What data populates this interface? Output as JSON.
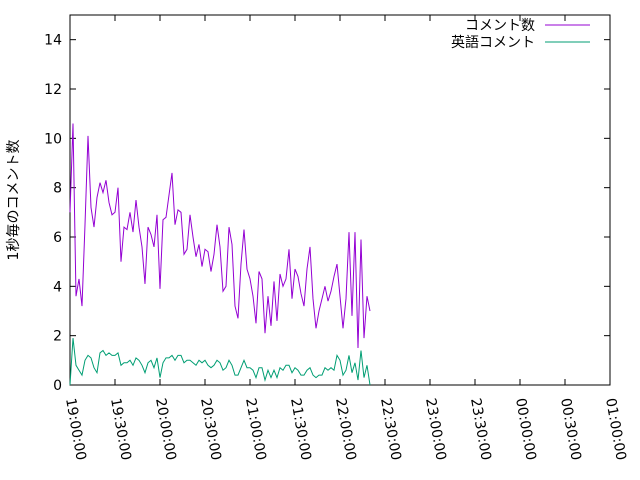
{
  "chart_data": {
    "type": "line",
    "ylabel": "1秒毎のコメント数",
    "xlabel": "",
    "ylim": [
      0,
      15
    ],
    "yticks": [
      "0",
      "2",
      "4",
      "6",
      "8",
      "10",
      "12",
      "14"
    ],
    "xlim": [
      "19:00:00",
      "01:00:00"
    ],
    "xticks": [
      "19:00:00",
      "19:30:00",
      "20:00:00",
      "20:30:00",
      "21:00:00",
      "21:30:00",
      "22:00:00",
      "22:30:00",
      "23:00:00",
      "23:30:00",
      "00:00:00",
      "00:30:00",
      "01:00:00"
    ],
    "grid": false,
    "legend_position": "top-right",
    "series": [
      {
        "name": "コメント数",
        "color": "#9400d3",
        "points": [
          [
            "19:00:00",
            7.0
          ],
          [
            "19:02:00",
            10.6
          ],
          [
            "19:04:00",
            3.6
          ],
          [
            "19:06:00",
            4.3
          ],
          [
            "19:08:00",
            3.2
          ],
          [
            "19:10:00",
            6.5
          ],
          [
            "19:12:00",
            10.1
          ],
          [
            "19:14:00",
            7.2
          ],
          [
            "19:16:00",
            6.4
          ],
          [
            "19:18:00",
            7.6
          ],
          [
            "19:20:00",
            8.2
          ],
          [
            "19:22:00",
            7.8
          ],
          [
            "19:24:00",
            8.3
          ],
          [
            "19:26:00",
            7.4
          ],
          [
            "19:28:00",
            6.9
          ],
          [
            "19:30:00",
            7.0
          ],
          [
            "19:32:00",
            8.0
          ],
          [
            "19:34:00",
            5.0
          ],
          [
            "19:36:00",
            6.4
          ],
          [
            "19:38:00",
            6.3
          ],
          [
            "19:40:00",
            7.0
          ],
          [
            "19:42:00",
            6.2
          ],
          [
            "19:44:00",
            7.5
          ],
          [
            "19:46:00",
            6.4
          ],
          [
            "19:48:00",
            5.6
          ],
          [
            "19:50:00",
            4.1
          ],
          [
            "19:52:00",
            6.4
          ],
          [
            "19:54:00",
            6.1
          ],
          [
            "19:56:00",
            5.6
          ],
          [
            "19:58:00",
            6.9
          ],
          [
            "20:00:00",
            3.9
          ],
          [
            "20:02:00",
            6.7
          ],
          [
            "20:04:00",
            6.8
          ],
          [
            "20:06:00",
            7.7
          ],
          [
            "20:08:00",
            8.6
          ],
          [
            "20:10:00",
            6.5
          ],
          [
            "20:12:00",
            7.1
          ],
          [
            "20:14:00",
            7.0
          ],
          [
            "20:16:00",
            5.3
          ],
          [
            "20:18:00",
            5.5
          ],
          [
            "20:20:00",
            6.9
          ],
          [
            "20:22:00",
            6.0
          ],
          [
            "20:24:00",
            5.2
          ],
          [
            "20:26:00",
            5.7
          ],
          [
            "20:28:00",
            4.8
          ],
          [
            "20:30:00",
            5.5
          ],
          [
            "20:32:00",
            5.4
          ],
          [
            "20:34:00",
            4.6
          ],
          [
            "20:36:00",
            5.3
          ],
          [
            "20:38:00",
            6.5
          ],
          [
            "20:40:00",
            5.6
          ],
          [
            "20:42:00",
            3.8
          ],
          [
            "20:44:00",
            4.0
          ],
          [
            "20:46:00",
            6.4
          ],
          [
            "20:48:00",
            5.7
          ],
          [
            "20:50:00",
            3.2
          ],
          [
            "20:52:00",
            2.7
          ],
          [
            "20:54:00",
            4.9
          ],
          [
            "20:56:00",
            6.3
          ],
          [
            "20:58:00",
            4.7
          ],
          [
            "21:00:00",
            4.3
          ],
          [
            "21:02:00",
            3.6
          ],
          [
            "21:04:00",
            2.5
          ],
          [
            "21:06:00",
            4.6
          ],
          [
            "21:08:00",
            4.3
          ],
          [
            "21:10:00",
            2.1
          ],
          [
            "21:12:00",
            3.6
          ],
          [
            "21:14:00",
            2.4
          ],
          [
            "21:16:00",
            4.2
          ],
          [
            "21:18:00",
            2.6
          ],
          [
            "21:20:00",
            4.5
          ],
          [
            "21:22:00",
            4.0
          ],
          [
            "21:24:00",
            4.3
          ],
          [
            "21:26:00",
            5.5
          ],
          [
            "21:28:00",
            3.5
          ],
          [
            "21:30:00",
            4.7
          ],
          [
            "21:32:00",
            4.4
          ],
          [
            "21:34:00",
            3.7
          ],
          [
            "21:36:00",
            3.2
          ],
          [
            "21:38:00",
            4.7
          ],
          [
            "21:40:00",
            5.6
          ],
          [
            "21:42:00",
            3.5
          ],
          [
            "21:44:00",
            2.3
          ],
          [
            "21:46:00",
            3.0
          ],
          [
            "21:48:00",
            3.5
          ],
          [
            "21:50:00",
            4.0
          ],
          [
            "21:52:00",
            3.4
          ],
          [
            "21:54:00",
            3.8
          ],
          [
            "21:56:00",
            4.4
          ],
          [
            "21:58:00",
            4.9
          ],
          [
            "22:00:00",
            3.6
          ],
          [
            "22:02:00",
            2.3
          ],
          [
            "22:04:00",
            3.5
          ],
          [
            "22:06:00",
            6.2
          ],
          [
            "22:08:00",
            2.8
          ],
          [
            "22:10:00",
            6.2
          ],
          [
            "22:12:00",
            1.5
          ],
          [
            "22:14:00",
            5.9
          ],
          [
            "22:16:00",
            1.9
          ],
          [
            "22:18:00",
            3.6
          ],
          [
            "22:20:00",
            3.0
          ]
        ]
      },
      {
        "name": "英語コメント",
        "color": "#009e73",
        "points": [
          [
            "19:00:00",
            0.0
          ],
          [
            "19:02:00",
            1.9
          ],
          [
            "19:04:00",
            0.8
          ],
          [
            "19:06:00",
            0.6
          ],
          [
            "19:08:00",
            0.4
          ],
          [
            "19:10:00",
            1.0
          ],
          [
            "19:12:00",
            1.2
          ],
          [
            "19:14:00",
            1.1
          ],
          [
            "19:16:00",
            0.7
          ],
          [
            "19:18:00",
            0.5
          ],
          [
            "19:20:00",
            1.3
          ],
          [
            "19:22:00",
            1.4
          ],
          [
            "19:24:00",
            1.2
          ],
          [
            "19:26:00",
            1.3
          ],
          [
            "19:28:00",
            1.2
          ],
          [
            "19:30:00",
            1.2
          ],
          [
            "19:32:00",
            1.3
          ],
          [
            "19:34:00",
            0.8
          ],
          [
            "19:36:00",
            0.9
          ],
          [
            "19:38:00",
            0.9
          ],
          [
            "19:40:00",
            1.0
          ],
          [
            "19:42:00",
            0.8
          ],
          [
            "19:44:00",
            1.1
          ],
          [
            "19:46:00",
            1.0
          ],
          [
            "19:48:00",
            0.8
          ],
          [
            "19:50:00",
            0.5
          ],
          [
            "19:52:00",
            0.9
          ],
          [
            "19:54:00",
            1.0
          ],
          [
            "19:56:00",
            0.7
          ],
          [
            "19:58:00",
            1.1
          ],
          [
            "20:00:00",
            0.3
          ],
          [
            "20:02:00",
            0.9
          ],
          [
            "20:04:00",
            1.1
          ],
          [
            "20:06:00",
            1.1
          ],
          [
            "20:08:00",
            1.2
          ],
          [
            "20:10:00",
            1.0
          ],
          [
            "20:12:00",
            1.2
          ],
          [
            "20:14:00",
            1.2
          ],
          [
            "20:16:00",
            0.9
          ],
          [
            "20:18:00",
            1.0
          ],
          [
            "20:20:00",
            1.0
          ],
          [
            "20:22:00",
            0.9
          ],
          [
            "20:24:00",
            0.8
          ],
          [
            "20:26:00",
            1.0
          ],
          [
            "20:28:00",
            0.9
          ],
          [
            "20:30:00",
            1.0
          ],
          [
            "20:32:00",
            0.8
          ],
          [
            "20:34:00",
            0.7
          ],
          [
            "20:36:00",
            0.8
          ],
          [
            "20:38:00",
            1.0
          ],
          [
            "20:40:00",
            0.9
          ],
          [
            "20:42:00",
            0.6
          ],
          [
            "20:44:00",
            0.7
          ],
          [
            "20:46:00",
            1.0
          ],
          [
            "20:48:00",
            0.8
          ],
          [
            "20:50:00",
            0.4
          ],
          [
            "20:52:00",
            0.4
          ],
          [
            "20:54:00",
            0.7
          ],
          [
            "20:56:00",
            1.0
          ],
          [
            "20:58:00",
            0.7
          ],
          [
            "21:00:00",
            0.7
          ],
          [
            "21:02:00",
            0.6
          ],
          [
            "21:04:00",
            0.3
          ],
          [
            "21:06:00",
            0.7
          ],
          [
            "21:08:00",
            0.7
          ],
          [
            "21:10:00",
            0.2
          ],
          [
            "21:12:00",
            0.6
          ],
          [
            "21:14:00",
            0.3
          ],
          [
            "21:16:00",
            0.6
          ],
          [
            "21:18:00",
            0.3
          ],
          [
            "21:20:00",
            0.7
          ],
          [
            "21:22:00",
            0.6
          ],
          [
            "21:24:00",
            0.8
          ],
          [
            "21:26:00",
            0.8
          ],
          [
            "21:28:00",
            0.5
          ],
          [
            "21:30:00",
            0.7
          ],
          [
            "21:32:00",
            0.6
          ],
          [
            "21:34:00",
            0.4
          ],
          [
            "21:36:00",
            0.4
          ],
          [
            "21:38:00",
            0.6
          ],
          [
            "21:40:00",
            0.7
          ],
          [
            "21:42:00",
            0.4
          ],
          [
            "21:44:00",
            0.3
          ],
          [
            "21:46:00",
            0.4
          ],
          [
            "21:48:00",
            0.4
          ],
          [
            "21:50:00",
            0.7
          ],
          [
            "21:52:00",
            0.6
          ],
          [
            "21:54:00",
            0.7
          ],
          [
            "21:56:00",
            0.6
          ],
          [
            "21:58:00",
            1.2
          ],
          [
            "22:00:00",
            1.0
          ],
          [
            "22:02:00",
            0.4
          ],
          [
            "22:04:00",
            0.6
          ],
          [
            "22:06:00",
            1.2
          ],
          [
            "22:08:00",
            0.5
          ],
          [
            "22:10:00",
            0.9
          ],
          [
            "22:12:00",
            0.2
          ],
          [
            "22:14:00",
            1.4
          ],
          [
            "22:16:00",
            0.3
          ],
          [
            "22:18:00",
            0.8
          ],
          [
            "22:20:00",
            0.0
          ]
        ]
      }
    ]
  }
}
